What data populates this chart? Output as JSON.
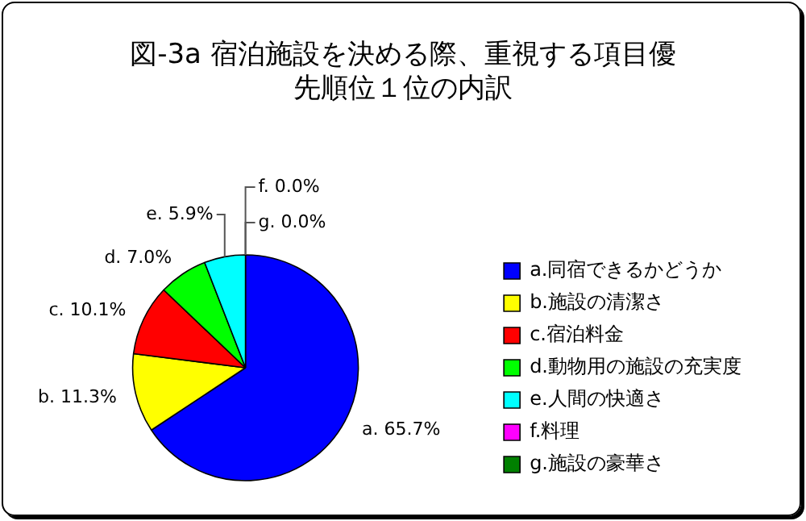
{
  "chart_data": {
    "type": "pie",
    "title": "図-3a 宿泊施設を決める際、重視する項目優先順位１位の内訳",
    "categories": [
      "a.同宿できるかどうか",
      "b.施設の清潔さ",
      "c.宿泊料金",
      "d.動物用の施設の充実度",
      "e.人間の快適さ",
      "f.料理",
      "g.施設の豪華さ"
    ],
    "values": [
      65.7,
      11.3,
      10.1,
      7.0,
      5.9,
      0.0,
      0.0
    ],
    "colors": [
      "#0000ff",
      "#ffff00",
      "#ff0000",
      "#00ff00",
      "#00ffff",
      "#ff00ff",
      "#008000"
    ],
    "value_labels": [
      "a. 65.7%",
      "b. 11.3%",
      "c. 10.1%",
      "d. 7.0%",
      "e. 5.9%",
      "f. 0.0%",
      "g. 0.0%"
    ],
    "legend": "right"
  }
}
